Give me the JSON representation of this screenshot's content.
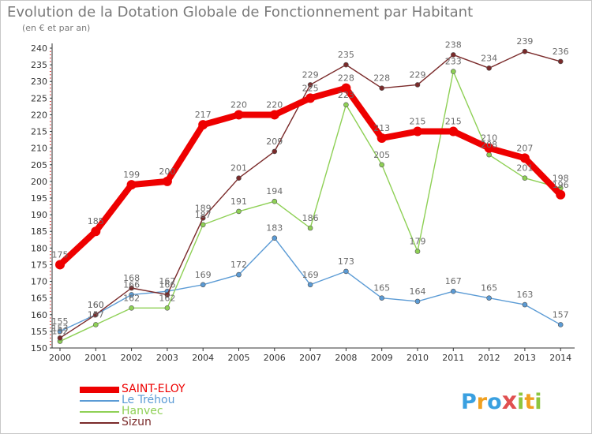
{
  "header": {
    "title": "Evolution de la Dotation Globale de Fonctionnement par Habitant",
    "subtitle": "(en € et par an)"
  },
  "logo": {
    "text": "ProXiti",
    "letters": [
      "P",
      "r",
      "o",
      "x",
      "i",
      "t",
      "i"
    ]
  },
  "chart_data": {
    "type": "line",
    "title": "Evolution de la Dotation Globale de Fonctionnement par Habitant",
    "subtitle": "(en € et par an)",
    "xlabel": "",
    "ylabel": "",
    "categories": [
      "2000",
      "2001",
      "2002",
      "2003",
      "2004",
      "2005",
      "2006",
      "2007",
      "2008",
      "2009",
      "2010",
      "2011",
      "2012",
      "2013",
      "2014"
    ],
    "ylim": [
      150,
      240
    ],
    "yticks": [
      150,
      155,
      160,
      165,
      170,
      175,
      180,
      185,
      190,
      195,
      200,
      205,
      210,
      215,
      220,
      225,
      230,
      235,
      240
    ],
    "grid": false,
    "legend_position": "bottom-left",
    "series": [
      {
        "name": "SAINT-ELOY",
        "color": "#ee0000",
        "values": [
          175,
          185,
          199,
          200,
          217,
          220,
          220,
          225,
          228,
          213,
          215,
          215,
          210,
          207,
          196
        ],
        "labels": [
          "175",
          "185",
          "199",
          "200",
          "217",
          "220",
          "220",
          "225",
          "228",
          "213",
          "215",
          "215",
          "210",
          "207",
          "196"
        ]
      },
      {
        "name": "Le Tréhou",
        "color": "#5b9bd5",
        "values": [
          155,
          160,
          166,
          167,
          169,
          172,
          183,
          169,
          173,
          165,
          164,
          167,
          165,
          163,
          157
        ],
        "labels": [
          "155",
          "160",
          "166",
          "167",
          "169",
          "172",
          "183",
          "169",
          "173",
          "165",
          "164",
          "167",
          "165",
          "163",
          "157"
        ]
      },
      {
        "name": "Hanvec",
        "color": "#8ed055",
        "values": [
          152,
          157,
          162,
          162,
          187,
          191,
          194,
          186,
          223,
          205,
          179,
          233,
          208,
          201,
          198
        ],
        "labels": [
          "152",
          "157",
          "162",
          "162",
          "187",
          "191",
          "194",
          "186",
          "223",
          "205",
          "179",
          "233",
          "208",
          "201",
          "198"
        ]
      },
      {
        "name": "Sizun",
        "color": "#7a2a2a",
        "values": [
          153,
          160,
          168,
          166,
          189,
          201,
          209,
          229,
          235,
          228,
          229,
          238,
          234,
          239,
          236
        ],
        "labels": [
          "153",
          "160",
          "168",
          "166",
          "189",
          "201",
          "209",
          "229",
          "235",
          "228",
          "229",
          "238",
          "234",
          "239",
          "236"
        ]
      }
    ]
  },
  "colors": {
    "axis": "#333333",
    "label": "#6a6a6a",
    "title": "#7a7a7a",
    "tick_mark": "#d00000"
  }
}
